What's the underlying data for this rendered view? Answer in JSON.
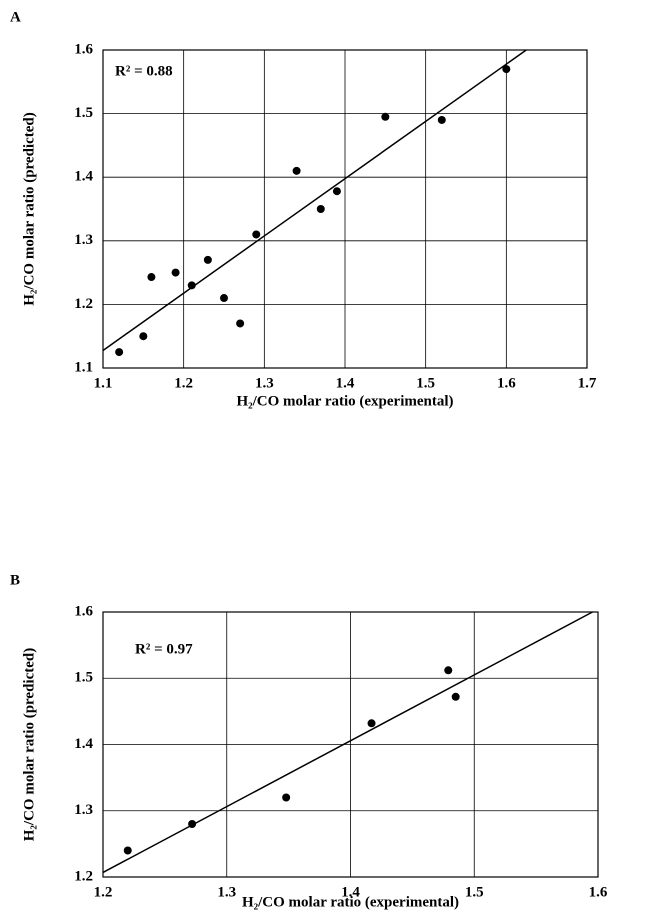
{
  "chart_data": [
    {
      "type": "scatter",
      "panel": "A",
      "annotation": "R² = 0.88",
      "x_label": "H₂/CO molar ratio (experimental)",
      "y_label": "H₂/CO molar ratio (predicted)",
      "x": [
        1.12,
        1.15,
        1.16,
        1.19,
        1.21,
        1.23,
        1.25,
        1.27,
        1.29,
        1.34,
        1.37,
        1.39,
        1.45,
        1.52,
        1.6
      ],
      "values": [
        1.125,
        1.15,
        1.243,
        1.25,
        1.23,
        1.27,
        1.21,
        1.17,
        1.31,
        1.41,
        1.35,
        1.378,
        1.495,
        1.49,
        1.57
      ],
      "color": "#000000",
      "trendline": true,
      "xlim": [
        1.1,
        1.7
      ],
      "xticks": [
        1.1,
        1.2,
        1.3,
        1.4,
        1.5,
        1.6,
        1.7
      ],
      "ylim": [
        1.1,
        1.6
      ],
      "yticks": [
        1.1,
        1.2,
        1.3,
        1.4,
        1.5,
        1.6
      ],
      "grid": true
    },
    {
      "type": "scatter",
      "panel": "B",
      "annotation": "R² = 0.97",
      "x_label": "H₂/CO molar ratio (experimental)",
      "y_label": "H₂/CO molar ratio (predicted)",
      "x": [
        1.22,
        1.272,
        1.348,
        1.417,
        1.479,
        1.485
      ],
      "values": [
        1.24,
        1.28,
        1.32,
        1.432,
        1.512,
        1.472
      ],
      "color": "#000000",
      "trendline": true,
      "xlim": [
        1.2,
        1.6
      ],
      "xticks": [
        1.2,
        1.3,
        1.4,
        1.5,
        1.6
      ],
      "ylim": [
        1.2,
        1.6
      ],
      "yticks": [
        1.2,
        1.3,
        1.4,
        1.5,
        1.6
      ],
      "grid": true
    }
  ]
}
